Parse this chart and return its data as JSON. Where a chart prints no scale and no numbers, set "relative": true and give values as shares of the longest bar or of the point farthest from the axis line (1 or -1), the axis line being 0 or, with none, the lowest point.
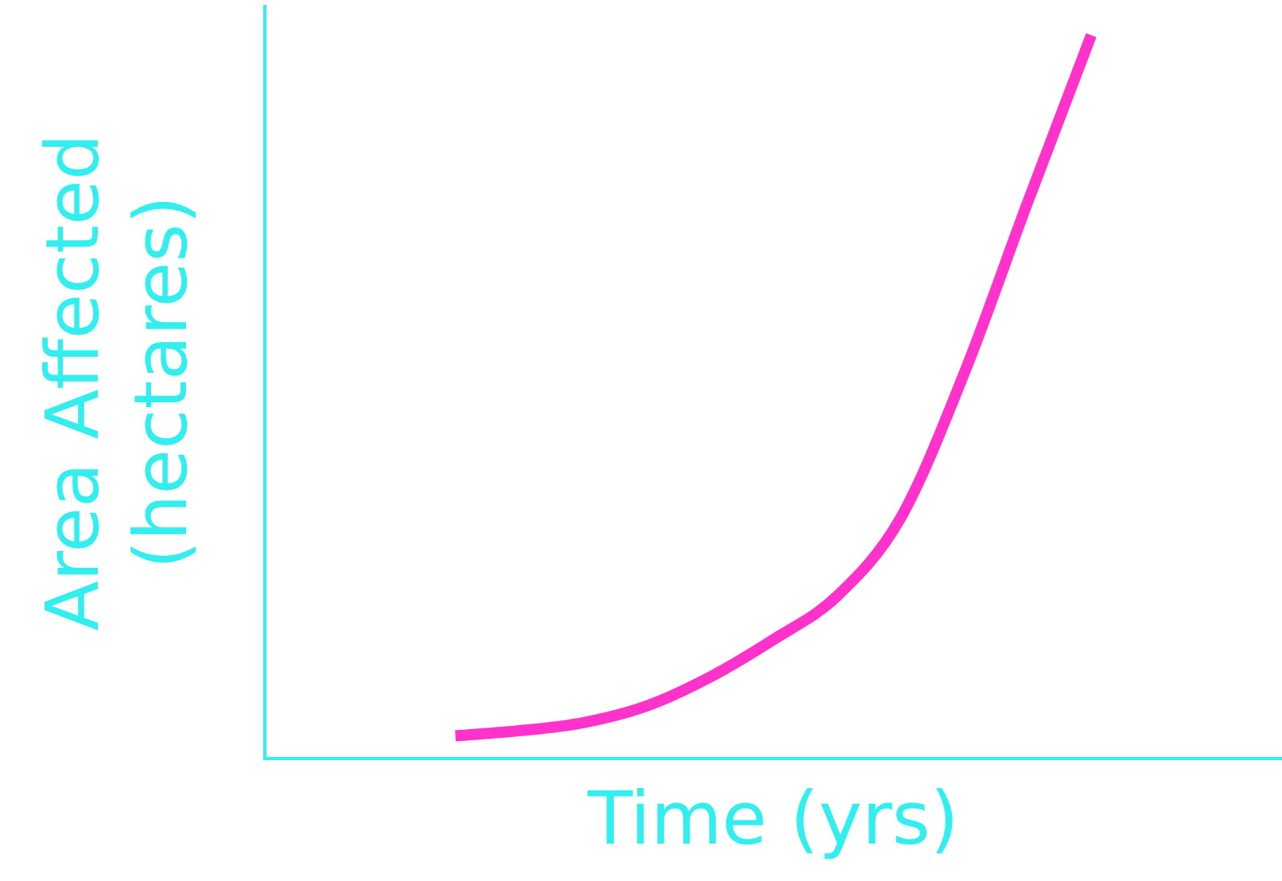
{
  "chart_data": {
    "type": "line",
    "relative": true,
    "xlabel": "Time (yrs)",
    "ylabel": "Area Affected\n(hectares)",
    "categories": [
      null,
      null,
      null,
      null,
      null,
      null,
      null,
      null,
      null,
      null,
      null,
      null,
      null,
      null,
      null,
      null,
      null
    ],
    "series": [
      {
        "color": "#ff33cc",
        "values": [
          null,
          null,
          null,
          0.031,
          0.038,
          0.049,
          0.072,
          0.112,
          0.164,
          0.224,
          0.332,
          0.532,
          0.769,
          1,
          null,
          null,
          null
        ]
      }
    ],
    "grid": false,
    "legend": false,
    "marker": "none",
    "line_style": "solid"
  }
}
